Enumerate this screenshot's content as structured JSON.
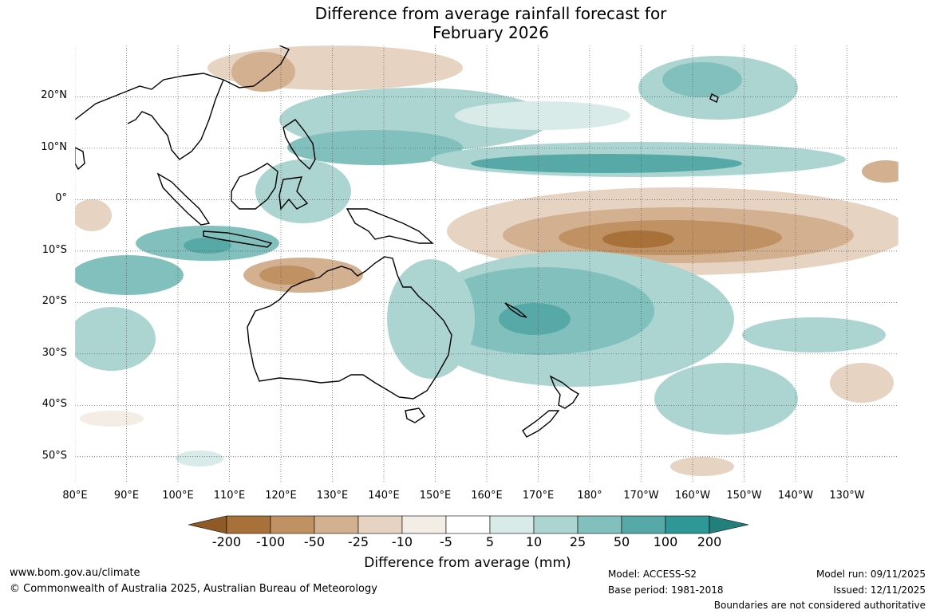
{
  "title": {
    "line1": "Difference from average rainfall forecast for",
    "line2": "February 2026"
  },
  "map": {
    "lon_range": [
      80,
      240
    ],
    "lat_range": [
      -55,
      30
    ],
    "lat_ticks": [
      {
        "value": 20,
        "label": "20°N"
      },
      {
        "value": 10,
        "label": "10°N"
      },
      {
        "value": 0,
        "label": "0°"
      },
      {
        "value": -10,
        "label": "10°S"
      },
      {
        "value": -20,
        "label": "20°S"
      },
      {
        "value": -30,
        "label": "30°S"
      },
      {
        "value": -40,
        "label": "40°S"
      },
      {
        "value": -50,
        "label": "50°S"
      }
    ],
    "lon_ticks": [
      {
        "value": 80,
        "label": "80°E"
      },
      {
        "value": 90,
        "label": "90°E"
      },
      {
        "value": 100,
        "label": "100°E"
      },
      {
        "value": 110,
        "label": "110°E"
      },
      {
        "value": 120,
        "label": "120°E"
      },
      {
        "value": 130,
        "label": "130°E"
      },
      {
        "value": 140,
        "label": "140°E"
      },
      {
        "value": 150,
        "label": "150°E"
      },
      {
        "value": 160,
        "label": "160°E"
      },
      {
        "value": 170,
        "label": "170°E"
      },
      {
        "value": 180,
        "label": "180°"
      },
      {
        "value": 190,
        "label": "170°W"
      },
      {
        "value": 200,
        "label": "160°W"
      },
      {
        "value": 210,
        "label": "150°W"
      },
      {
        "value": 220,
        "label": "140°W"
      },
      {
        "value": 230,
        "label": "130°W"
      }
    ],
    "grid": true
  },
  "colorbar": {
    "levels": [
      "-200",
      "-100",
      "-50",
      "-25",
      "-10",
      "-5",
      "5",
      "10",
      "25",
      "50",
      "100",
      "200"
    ],
    "colors": [
      "#a87139",
      "#bf9163",
      "#d3b08f",
      "#e6d3c2",
      "#f3ede6",
      "#ffffff",
      "#d8ebe9",
      "#acd5d2",
      "#82c0bd",
      "#56a9a7",
      "#2f9795"
    ],
    "under_color": "#8f5a25",
    "over_color": "#237f7c",
    "label": "Difference from average (mm)"
  },
  "footer": {
    "website": "www.bom.gov.au/climate",
    "copyright": "© Commonwealth of Australia 2025, Australian Bureau of Meteorology",
    "model": "Model: ACCESS-S2",
    "base_period": "Base period: 1981-2018",
    "model_run": "Model run: 09/11/2025",
    "issued": "Issued: 12/11/2025",
    "boundaries": "Boundaries are not considered authoritative"
  }
}
